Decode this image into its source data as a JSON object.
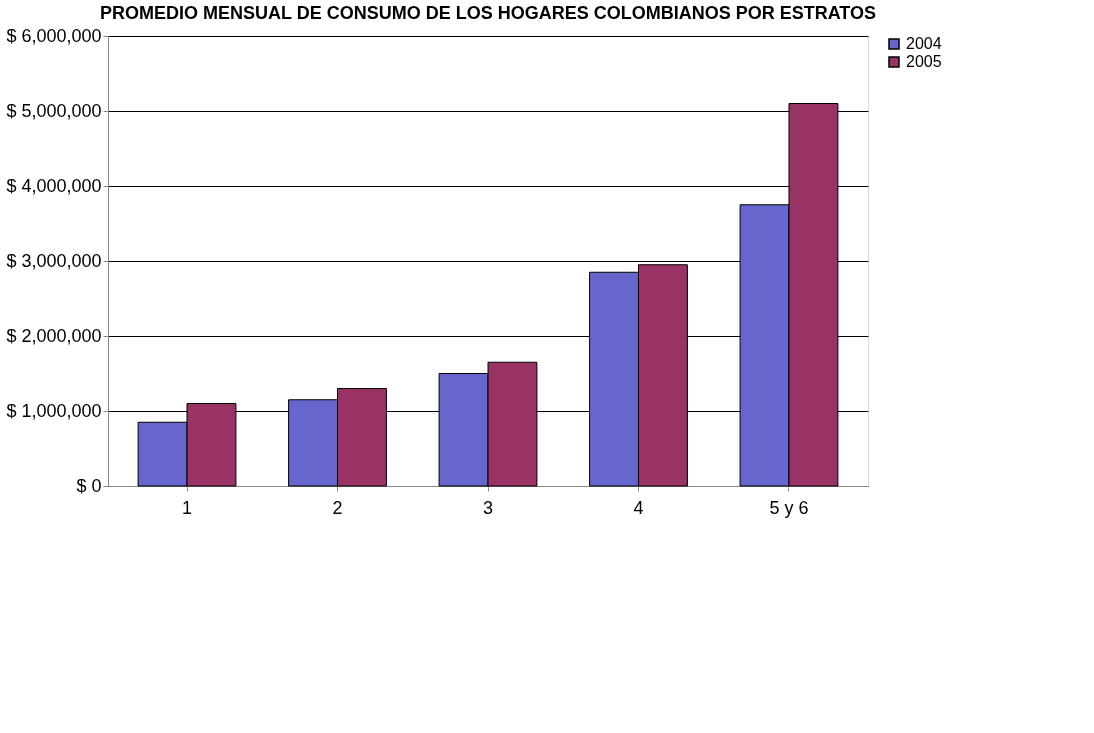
{
  "chart_data": {
    "type": "bar",
    "title": "PROMEDIO MENSUAL DE CONSUMO DE LOS HOGARES COLOMBIANOS POR ESTRATOS",
    "categories": [
      "1",
      "2",
      "3",
      "4",
      "5 y 6"
    ],
    "series": [
      {
        "name": "2004",
        "color": "#6666cc",
        "values": [
          850000,
          1150000,
          1500000,
          2850000,
          3750000
        ]
      },
      {
        "name": "2005",
        "color": "#993366",
        "values": [
          1100000,
          1300000,
          1650000,
          2950000,
          5100000
        ]
      }
    ],
    "ylim": [
      0,
      6000000
    ],
    "yticks": [
      {
        "value": 0,
        "label": "$ 0"
      },
      {
        "value": 1000000,
        "label": "$ 1,000,000"
      },
      {
        "value": 2000000,
        "label": "$ 2,000,000"
      },
      {
        "value": 3000000,
        "label": "$ 3,000,000"
      },
      {
        "value": 4000000,
        "label": "$ 4,000,000"
      },
      {
        "value": 5000000,
        "label": "$ 5,000,000"
      },
      {
        "value": 6000000,
        "label": "$ 6,000,000"
      }
    ],
    "grid": "y",
    "legend": "right"
  }
}
